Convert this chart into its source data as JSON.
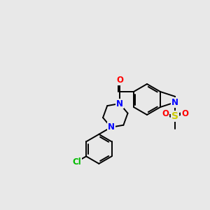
{
  "background_color": "#e8e8e8",
  "atom_colors": {
    "N": "#0000ff",
    "O": "#ff0000",
    "S": "#cccc00",
    "Cl": "#00bb00"
  },
  "bond_lw": 1.4,
  "font_size": 8.5,
  "figsize": [
    3.0,
    3.0
  ],
  "dpi": 100
}
